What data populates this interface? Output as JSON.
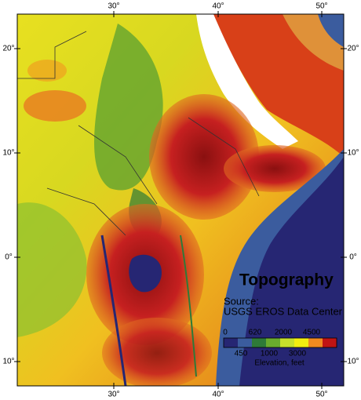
{
  "title": "Topography",
  "source": {
    "label": "Source:",
    "name": "USGS EROS Data Center"
  },
  "longitude_labels": [
    "30°",
    "40°",
    "50°"
  ],
  "latitude_labels": [
    "20°",
    "10°",
    "0°",
    "10°"
  ],
  "legend": {
    "colors": [
      "#262673",
      "#3b5c9e",
      "#2e7a38",
      "#6aac2e",
      "#c6e02c",
      "#f2ee10",
      "#f08a20",
      "#c01414"
    ],
    "top_labels": [
      "0",
      "620",
      "2000",
      "4500"
    ],
    "bottom_labels": [
      "450",
      "1000",
      "3000"
    ],
    "caption": "Elevation, feet"
  }
}
